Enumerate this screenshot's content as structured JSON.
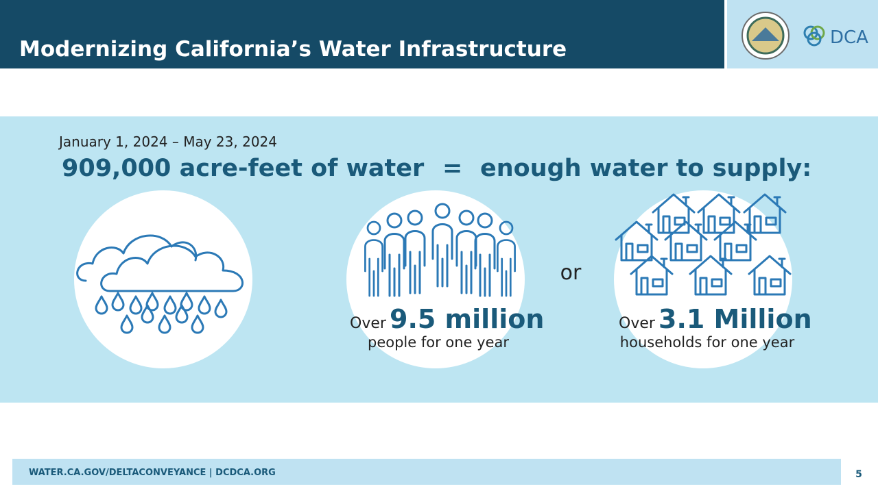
{
  "header": {
    "title": "Modernizing California’s Water Infrastructure",
    "logo_text": "DCA"
  },
  "infographic": {
    "date_range": "January 1, 2024 – May 23, 2024",
    "headline": {
      "left": "909,000 acre-feet of water",
      "equals": "=",
      "right": "enough water to supply:"
    },
    "people": {
      "prefix": "Over",
      "figure": "9.5 million",
      "caption": "people for one year"
    },
    "separator": "or",
    "households": {
      "prefix": "Over",
      "figure": "3.1 Million",
      "caption": "households for one year"
    }
  },
  "footer": {
    "url": "WATER.CA.GOV/DELTACONVEYANCE | DCDCA.ORG",
    "page_number": "5"
  }
}
